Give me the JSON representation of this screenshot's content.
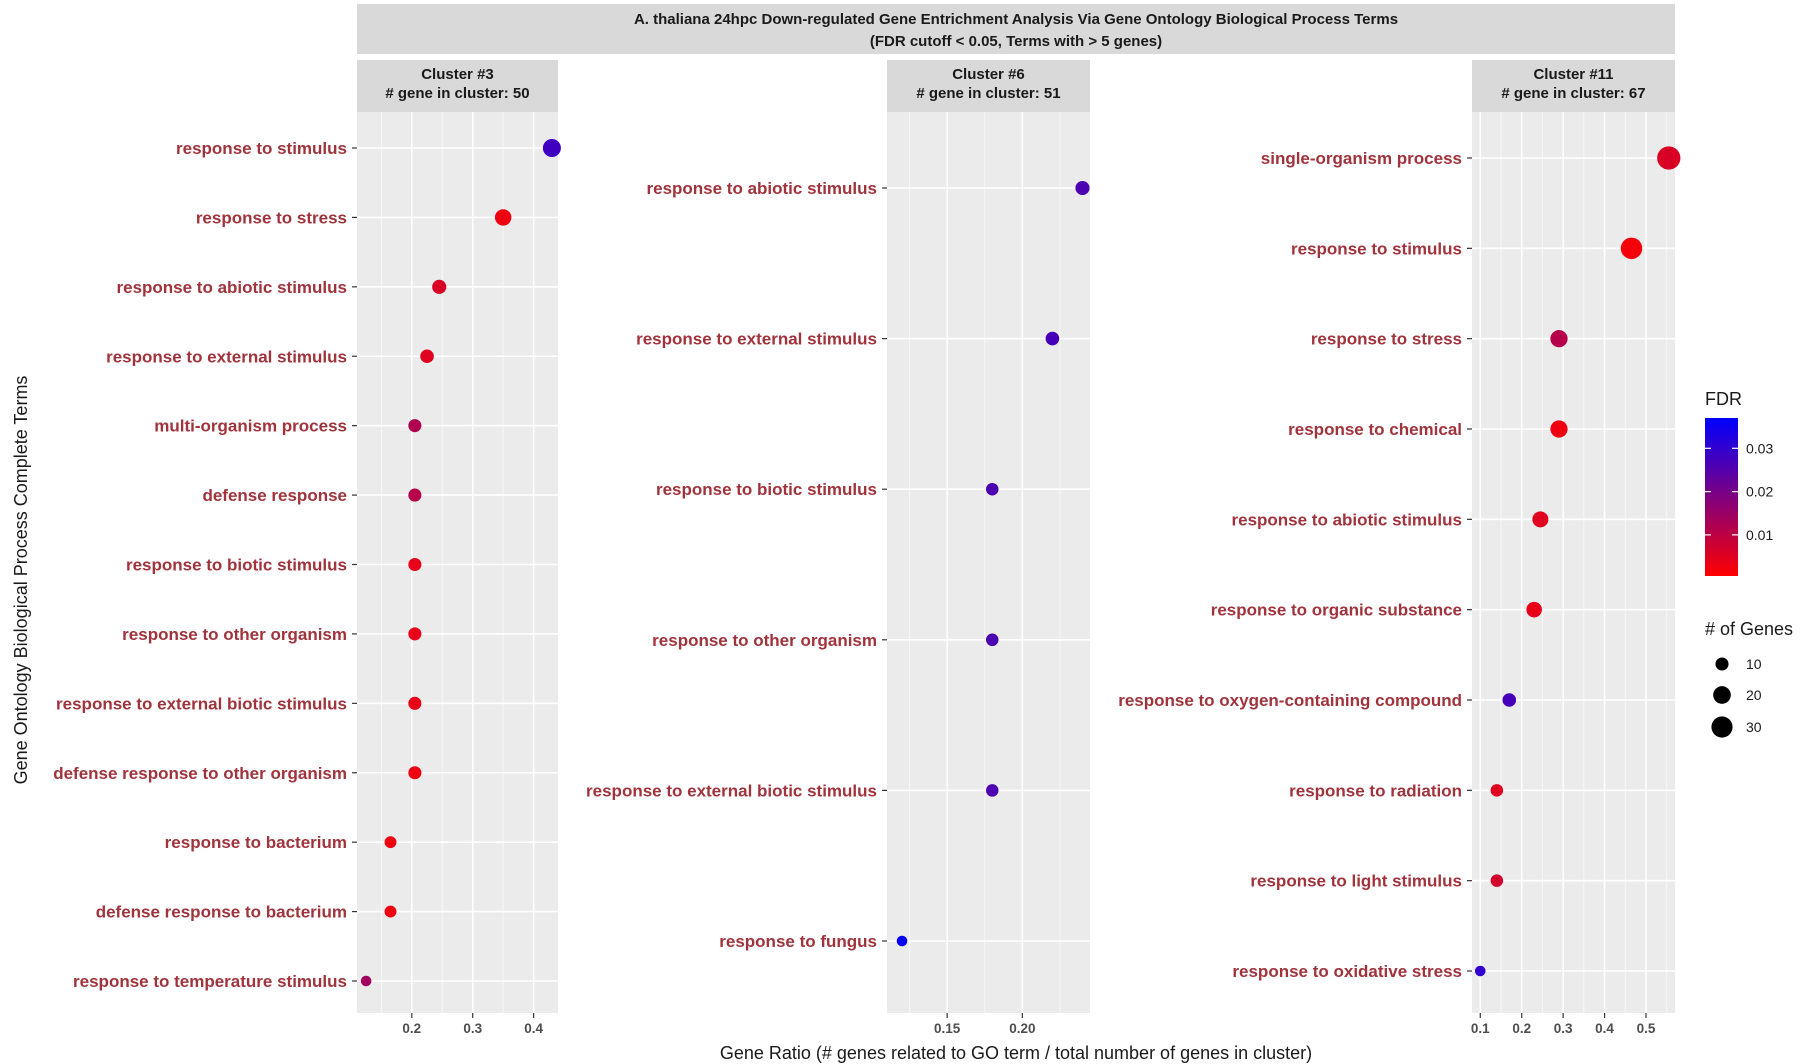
{
  "chart_data": {
    "type": "scatter",
    "title_line1": "A. thaliana 24hpc Down-regulated Gene Entrichment Analysis Via Gene Ontology Biological Process Terms",
    "title_line2": "(FDR cutoff < 0.05, Terms with > 5 genes)",
    "xlabel": "Gene Ratio (# genes related to GO term / total number of genes in cluster)",
    "ylabel": "Gene Ontology Biological Process Complete Terms",
    "legend_color": {
      "title": "FDR",
      "range": [
        0.0005,
        0.037
      ],
      "ticks": [
        0.01,
        0.02,
        0.03
      ],
      "tick_labels": [
        "0.01",
        "0.02",
        "0.03"
      ],
      "low_color": "#ff0000",
      "high_color": "#0000ff"
    },
    "legend_size": {
      "title": "# of Genes",
      "values": [
        10,
        20,
        30
      ],
      "labels": [
        "10",
        "20",
        "30"
      ]
    },
    "panels": [
      {
        "strip_line1": "Cluster #3",
        "strip_line2": "# gene in cluster: 50",
        "xlim": [
          0.11,
          0.44
        ],
        "xticks": [
          0.2,
          0.3,
          0.4
        ],
        "xtick_labels": [
          "0.2",
          "0.3",
          "0.4"
        ],
        "points": [
          {
            "term": "response to stimulus",
            "x": 0.43,
            "genes": 21,
            "fdr": 0.028
          },
          {
            "term": "response to stress",
            "x": 0.35,
            "genes": 17,
            "fdr": 0.003
          },
          {
            "term": "response to abiotic stimulus",
            "x": 0.245,
            "genes": 12,
            "fdr": 0.006
          },
          {
            "term": "response to external stimulus",
            "x": 0.225,
            "genes": 11,
            "fdr": 0.005
          },
          {
            "term": "multi-organism process",
            "x": 0.205,
            "genes": 10,
            "fdr": 0.012
          },
          {
            "term": "defense response",
            "x": 0.205,
            "genes": 10,
            "fdr": 0.011
          },
          {
            "term": "response to biotic stimulus",
            "x": 0.205,
            "genes": 10,
            "fdr": 0.004
          },
          {
            "term": "response to other organism",
            "x": 0.205,
            "genes": 10,
            "fdr": 0.004
          },
          {
            "term": "response to external biotic stimulus",
            "x": 0.205,
            "genes": 10,
            "fdr": 0.004
          },
          {
            "term": "defense response to other organism",
            "x": 0.205,
            "genes": 10,
            "fdr": 0.003
          },
          {
            "term": "response to bacterium",
            "x": 0.165,
            "genes": 8,
            "fdr": 0.003
          },
          {
            "term": "defense response to bacterium",
            "x": 0.165,
            "genes": 8,
            "fdr": 0.003
          },
          {
            "term": "response to temperature stimulus",
            "x": 0.125,
            "genes": 6,
            "fdr": 0.014
          }
        ]
      },
      {
        "strip_line1": "Cluster #6",
        "strip_line2": "# gene in cluster: 51",
        "xlim": [
          0.11,
          0.245
        ],
        "xticks": [
          0.15,
          0.2
        ],
        "xtick_labels": [
          "0.15",
          "0.20"
        ],
        "points": [
          {
            "term": "response to abiotic stimulus",
            "x": 0.24,
            "genes": 12,
            "fdr": 0.026
          },
          {
            "term": "response to external stimulus",
            "x": 0.22,
            "genes": 11,
            "fdr": 0.027
          },
          {
            "term": "response to biotic stimulus",
            "x": 0.18,
            "genes": 9,
            "fdr": 0.026
          },
          {
            "term": "response to other organism",
            "x": 0.18,
            "genes": 9,
            "fdr": 0.026
          },
          {
            "term": "response to external biotic stimulus",
            "x": 0.18,
            "genes": 9,
            "fdr": 0.026
          },
          {
            "term": "response to fungus",
            "x": 0.12,
            "genes": 6,
            "fdr": 0.036
          }
        ]
      },
      {
        "strip_line1": "Cluster #11",
        "strip_line2": "# gene in cluster: 67",
        "xlim": [
          0.08,
          0.57
        ],
        "xticks": [
          0.1,
          0.2,
          0.3,
          0.4,
          0.5
        ],
        "xtick_labels": [
          "0.1",
          "0.2",
          "0.3",
          "0.4",
          "0.5"
        ],
        "points": [
          {
            "term": "single-organism process",
            "x": 0.555,
            "genes": 37,
            "fdr": 0.006
          },
          {
            "term": "response to stimulus",
            "x": 0.465,
            "genes": 31,
            "fdr": 0.002
          },
          {
            "term": "response to stress",
            "x": 0.29,
            "genes": 19,
            "fdr": 0.011
          },
          {
            "term": "response to chemical",
            "x": 0.29,
            "genes": 19,
            "fdr": 0.003
          },
          {
            "term": "response to abiotic stimulus",
            "x": 0.245,
            "genes": 16,
            "fdr": 0.005
          },
          {
            "term": "response to organic substance",
            "x": 0.23,
            "genes": 15,
            "fdr": 0.004
          },
          {
            "term": "response to oxygen-containing compound",
            "x": 0.17,
            "genes": 11,
            "fdr": 0.027
          },
          {
            "term": "response to radiation",
            "x": 0.14,
            "genes": 9,
            "fdr": 0.005
          },
          {
            "term": "response to light stimulus",
            "x": 0.14,
            "genes": 9,
            "fdr": 0.007
          },
          {
            "term": "response to oxidative stress",
            "x": 0.1,
            "genes": 6,
            "fdr": 0.03
          }
        ]
      }
    ]
  }
}
